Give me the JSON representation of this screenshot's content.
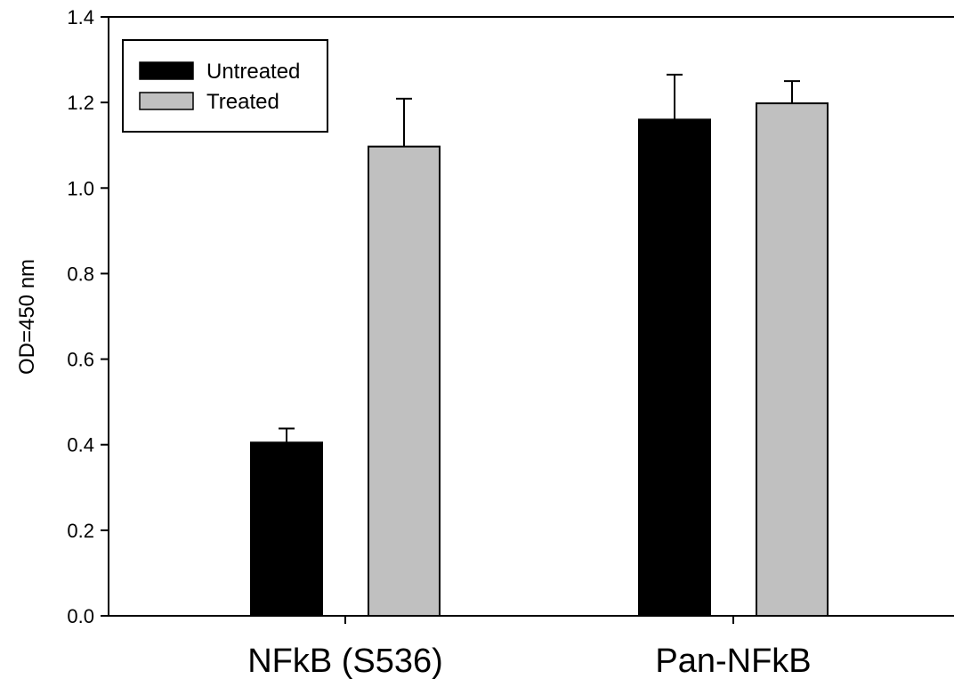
{
  "chart_data": {
    "type": "bar",
    "title": "",
    "xlabel": "",
    "ylabel": "OD=450 nm",
    "categories": [
      "NFkB (S536)",
      "Pan-NFkB"
    ],
    "series": [
      {
        "name": "Untreated",
        "values": [
          0.405,
          1.16
        ],
        "errors": [
          0.033,
          0.105
        ],
        "color": "#000000"
      },
      {
        "name": "Treated",
        "values": [
          1.097,
          1.198
        ],
        "errors": [
          0.112,
          0.052
        ],
        "color": "#c0c0c0"
      }
    ],
    "ylim": [
      0,
      1.4
    ],
    "yticks": [
      "0.0",
      "0.2",
      "0.4",
      "0.6",
      "0.8",
      "1.0",
      "1.2",
      "1.4"
    ],
    "error_bars": "upper",
    "grid": false,
    "legend_position": "top-left"
  }
}
